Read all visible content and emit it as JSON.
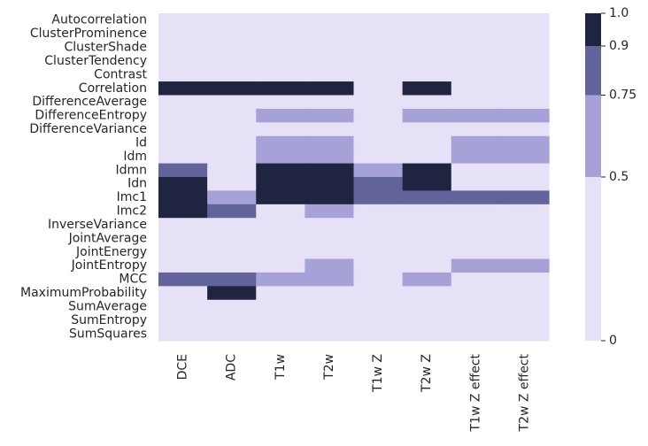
{
  "chart_data": {
    "type": "heatmap",
    "rows": [
      "Autocorrelation",
      "ClusterProminence",
      "ClusterShade",
      "ClusterTendency",
      "Contrast",
      "Correlation",
      "DifferenceAverage",
      "DifferenceEntropy",
      "DifferenceVariance",
      "Id",
      "Idm",
      "Idmn",
      "Idn",
      "Imc1",
      "Imc2",
      "InverseVariance",
      "JointAverage",
      "JointEnergy",
      "JointEntropy",
      "MCC",
      "MaximumProbability",
      "SumAverage",
      "SumEntropy",
      "SumSquares"
    ],
    "columns": [
      "DCE",
      "ADC",
      "T1w",
      "T2w",
      "T1w Z",
      "T2w Z",
      "T1w Z effect",
      "T2w Z effect"
    ],
    "values": [
      [
        0,
        0,
        0,
        0,
        0,
        0,
        0,
        0
      ],
      [
        0,
        0,
        0,
        0,
        0,
        0,
        0,
        0
      ],
      [
        0,
        0,
        0,
        0,
        0,
        0,
        0,
        0
      ],
      [
        0,
        0,
        0,
        0,
        0,
        0,
        0,
        0
      ],
      [
        0,
        0,
        0,
        0,
        0,
        0,
        0,
        0
      ],
      [
        0.95,
        0.95,
        0.95,
        0.95,
        0,
        0.95,
        0,
        0
      ],
      [
        0,
        0,
        0,
        0,
        0,
        0,
        0,
        0
      ],
      [
        0,
        0,
        0.6,
        0.6,
        0,
        0.6,
        0.6,
        0.6
      ],
      [
        0,
        0,
        0,
        0,
        0,
        0,
        0,
        0
      ],
      [
        0,
        0,
        0.6,
        0.6,
        0,
        0,
        0.6,
        0.6
      ],
      [
        0,
        0,
        0.6,
        0.6,
        0,
        0,
        0.6,
        0.6
      ],
      [
        0.8,
        0,
        0.95,
        0.95,
        0.6,
        0.95,
        0,
        0
      ],
      [
        0.95,
        0,
        0.95,
        0.95,
        0.8,
        0.95,
        0,
        0
      ],
      [
        0.95,
        0.6,
        0.95,
        0.95,
        0.8,
        0.8,
        0.8,
        0.8
      ],
      [
        0.95,
        0.8,
        0,
        0.6,
        0,
        0,
        0,
        0
      ],
      [
        0,
        0,
        0,
        0,
        0,
        0,
        0,
        0
      ],
      [
        0,
        0,
        0,
        0,
        0,
        0,
        0,
        0
      ],
      [
        0,
        0,
        0,
        0,
        0,
        0,
        0,
        0
      ],
      [
        0,
        0,
        0,
        0.6,
        0,
        0,
        0.6,
        0.6
      ],
      [
        0.8,
        0.8,
        0.6,
        0.6,
        0,
        0.6,
        0,
        0
      ],
      [
        0,
        0.95,
        0,
        0,
        0,
        0,
        0,
        0
      ],
      [
        0,
        0,
        0,
        0,
        0,
        0,
        0,
        0
      ],
      [
        0,
        0,
        0,
        0,
        0,
        0,
        0,
        0
      ],
      [
        0,
        0,
        0,
        0,
        0,
        0,
        0,
        0
      ]
    ],
    "colorbar": {
      "boundaries": [
        0,
        0.5,
        0.75,
        0.9,
        1.0
      ],
      "tick_labels": [
        "0",
        "0.5",
        "0.75",
        "0.9",
        "1.0"
      ],
      "colors": [
        "#e6e1f7",
        "#a6a1d7",
        "#62639b",
        "#1f2440"
      ]
    },
    "title": "",
    "xlabel": "",
    "ylabel": "",
    "grid": false
  }
}
